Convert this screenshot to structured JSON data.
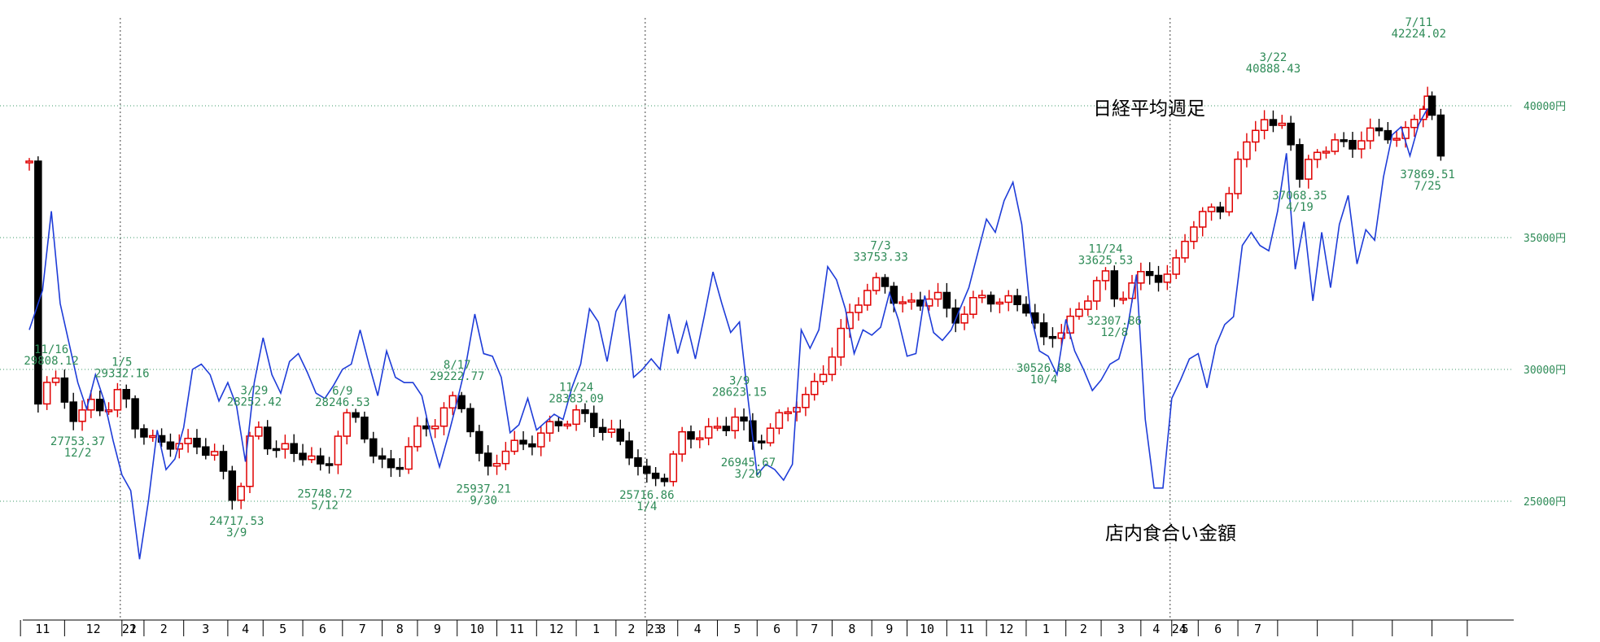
{
  "chart_data": {
    "type": "candlestick",
    "series_labels": {
      "candles": "日経平均週足",
      "line": "店内食合い金額"
    },
    "ylim": [
      20500,
      43400
    ],
    "y_ticks": [
      {
        "value": 25000,
        "label": "25000円"
      },
      {
        "value": 30000,
        "label": "30000円"
      },
      {
        "value": 35000,
        "label": "35000円"
      },
      {
        "value": 40000,
        "label": "40000円"
      }
    ],
    "year_markers": [
      {
        "week": 21,
        "label": "22"
      },
      {
        "week": 140,
        "label": "23"
      },
      {
        "week": 259,
        "label": "24"
      }
    ],
    "month_ticks": [
      "11",
      "12",
      "1",
      "2",
      "3",
      "4",
      "5",
      "6",
      "7",
      "8",
      "9",
      "10",
      "11",
      "12",
      "1",
      "2",
      "3",
      "4",
      "5",
      "6",
      "7",
      "8",
      "9",
      "10",
      "11",
      "12",
      "1",
      "2",
      "3",
      "4",
      "5",
      "6",
      "7"
    ],
    "annotations": [
      {
        "week": 5,
        "value": 29808.12,
        "date": "11/16",
        "pos": "above"
      },
      {
        "week": 11,
        "value": 27753.37,
        "date": "12/2",
        "pos": "below"
      },
      {
        "week": 21,
        "value": 29332.16,
        "date": "1/5",
        "pos": "above"
      },
      {
        "week": 47,
        "value": 24717.53,
        "date": "3/9",
        "pos": "below"
      },
      {
        "week": 51,
        "value": 28252.42,
        "date": "3/29",
        "pos": "above"
      },
      {
        "week": 67,
        "value": 25748.72,
        "date": "5/12",
        "pos": "below"
      },
      {
        "week": 71,
        "value": 28246.53,
        "date": "6/9",
        "pos": "above"
      },
      {
        "week": 97,
        "value": 29222.77,
        "date": "8/17",
        "pos": "above"
      },
      {
        "week": 103,
        "value": 25937.21,
        "date": "9/30",
        "pos": "below"
      },
      {
        "week": 124,
        "value": 28383.09,
        "date": "11/24",
        "pos": "above"
      },
      {
        "week": 140,
        "value": 25716.86,
        "date": "1/4",
        "pos": "below"
      },
      {
        "week": 161,
        "value": 28623.15,
        "date": "3/9",
        "pos": "above"
      },
      {
        "week": 163,
        "value": 26945.67,
        "date": "3/20",
        "pos": "below"
      },
      {
        "week": 193,
        "value": 33753.33,
        "date": "7/3",
        "pos": "above"
      },
      {
        "week": 230,
        "value": 30526.88,
        "date": "10/4",
        "pos": "below"
      },
      {
        "week": 244,
        "value": 33625.53,
        "date": "11/24",
        "pos": "above"
      },
      {
        "week": 246,
        "value": 32307.86,
        "date": "12/8",
        "pos": "below"
      },
      {
        "week": 282,
        "value": 40888.43,
        "date": "3/22",
        "pos": "above"
      },
      {
        "week": 288,
        "value": 37068.35,
        "date": "4/19",
        "pos": "below"
      },
      {
        "week": 315,
        "value": 42224.02,
        "date": "7/11",
        "pos": "above"
      },
      {
        "week": 317,
        "value": 37869.51,
        "date": "7/25",
        "pos": "below"
      }
    ],
    "candle_anchors": [
      [
        1,
        28700
      ],
      [
        5,
        29700
      ],
      [
        9,
        28600
      ],
      [
        11,
        27900
      ],
      [
        13,
        28700
      ],
      [
        18,
        28600
      ],
      [
        21,
        29200
      ],
      [
        24,
        28000
      ],
      [
        27,
        27200
      ],
      [
        31,
        27300
      ],
      [
        34,
        27100
      ],
      [
        38,
        27200
      ],
      [
        42,
        26700
      ],
      [
        47,
        24900
      ],
      [
        51,
        28000
      ],
      [
        55,
        27000
      ],
      [
        59,
        26900
      ],
      [
        63,
        26800
      ],
      [
        67,
        26000
      ],
      [
        71,
        28200
      ],
      [
        75,
        28000
      ],
      [
        79,
        26400
      ],
      [
        83,
        26200
      ],
      [
        88,
        27600
      ],
      [
        93,
        28200
      ],
      [
        97,
        29000
      ],
      [
        99,
        28400
      ],
      [
        103,
        26000
      ],
      [
        107,
        26900
      ],
      [
        111,
        27100
      ],
      [
        115,
        27400
      ],
      [
        119,
        27900
      ],
      [
        124,
        28300
      ],
      [
        128,
        28000
      ],
      [
        132,
        27500
      ],
      [
        136,
        26900
      ],
      [
        140,
        25800
      ],
      [
        144,
        26000
      ],
      [
        148,
        27400
      ],
      [
        152,
        27600
      ],
      [
        157,
        27700
      ],
      [
        161,
        28500
      ],
      [
        163,
        27100
      ],
      [
        167,
        27600
      ],
      [
        170,
        28100
      ],
      [
        174,
        28800
      ],
      [
        177,
        29000
      ],
      [
        181,
        30300
      ],
      [
        185,
        31700
      ],
      [
        189,
        33000
      ],
      [
        193,
        33300
      ],
      [
        197,
        32600
      ],
      [
        201,
        32300
      ],
      [
        205,
        33100
      ],
      [
        209,
        31800
      ],
      [
        213,
        32400
      ],
      [
        217,
        32800
      ],
      [
        220,
        32600
      ],
      [
        226,
        32400
      ],
      [
        230,
        31000
      ],
      [
        234,
        31600
      ],
      [
        238,
        32100
      ],
      [
        242,
        33500
      ],
      [
        244,
        33500
      ],
      [
        246,
        32600
      ],
      [
        250,
        33300
      ],
      [
        254,
        33600
      ],
      [
        259,
        33500
      ],
      [
        263,
        35500
      ],
      [
        267,
        35900
      ],
      [
        271,
        36300
      ],
      [
        275,
        38200
      ],
      [
        279,
        39700
      ],
      [
        282,
        39000
      ],
      [
        285,
        39600
      ],
      [
        288,
        37100
      ],
      [
        292,
        38400
      ],
      [
        296,
        38500
      ],
      [
        300,
        38600
      ],
      [
        304,
        38900
      ],
      [
        307,
        39100
      ],
      [
        311,
        38600
      ],
      [
        315,
        39900
      ],
      [
        317,
        40300
      ],
      [
        320,
        37900
      ]
    ],
    "line_points": [
      [
        0,
        31500
      ],
      [
        3,
        33000
      ],
      [
        5,
        36000
      ],
      [
        7,
        32500
      ],
      [
        9,
        31000
      ],
      [
        11,
        29500
      ],
      [
        13,
        28500
      ],
      [
        15,
        29800
      ],
      [
        17,
        28800
      ],
      [
        19,
        27300
      ],
      [
        21,
        26000
      ],
      [
        23,
        25400
      ],
      [
        25,
        22800
      ],
      [
        27,
        25000
      ],
      [
        29,
        27700
      ],
      [
        31,
        26200
      ],
      [
        33,
        26600
      ],
      [
        35,
        27800
      ],
      [
        37,
        30000
      ],
      [
        39,
        30200
      ],
      [
        41,
        29800
      ],
      [
        43,
        28800
      ],
      [
        45,
        29500
      ],
      [
        47,
        28600
      ],
      [
        49,
        26500
      ],
      [
        51,
        29500
      ],
      [
        53,
        31200
      ],
      [
        55,
        29800
      ],
      [
        57,
        29100
      ],
      [
        59,
        30300
      ],
      [
        61,
        30600
      ],
      [
        63,
        29900
      ],
      [
        65,
        29100
      ],
      [
        67,
        28900
      ],
      [
        69,
        29400
      ],
      [
        71,
        30000
      ],
      [
        73,
        30200
      ],
      [
        75,
        31500
      ],
      [
        77,
        30200
      ],
      [
        79,
        29000
      ],
      [
        81,
        30700
      ],
      [
        83,
        29700
      ],
      [
        85,
        29500
      ],
      [
        87,
        29500
      ],
      [
        89,
        29000
      ],
      [
        91,
        27500
      ],
      [
        93,
        26300
      ],
      [
        95,
        27500
      ],
      [
        97,
        28800
      ],
      [
        99,
        30200
      ],
      [
        101,
        32100
      ],
      [
        103,
        30600
      ],
      [
        105,
        30500
      ],
      [
        107,
        29700
      ],
      [
        109,
        27600
      ],
      [
        111,
        27900
      ],
      [
        113,
        28900
      ],
      [
        115,
        27700
      ],
      [
        117,
        28000
      ],
      [
        119,
        28300
      ],
      [
        121,
        28100
      ],
      [
        123,
        29300
      ],
      [
        125,
        30200
      ],
      [
        127,
        32300
      ],
      [
        129,
        31800
      ],
      [
        131,
        30300
      ],
      [
        133,
        32200
      ],
      [
        135,
        32800
      ],
      [
        137,
        29700
      ],
      [
        139,
        30000
      ],
      [
        141,
        30400
      ],
      [
        143,
        30000
      ],
      [
        145,
        32100
      ],
      [
        147,
        30600
      ],
      [
        149,
        31800
      ],
      [
        151,
        30400
      ],
      [
        153,
        32000
      ],
      [
        155,
        33700
      ],
      [
        157,
        32500
      ],
      [
        159,
        31400
      ],
      [
        161,
        31800
      ],
      [
        163,
        28800
      ],
      [
        165,
        26000
      ],
      [
        167,
        26400
      ],
      [
        169,
        26200
      ],
      [
        171,
        25800
      ],
      [
        173,
        26400
      ],
      [
        175,
        31500
      ],
      [
        177,
        30800
      ],
      [
        179,
        31500
      ],
      [
        181,
        33900
      ],
      [
        183,
        33400
      ],
      [
        185,
        32300
      ],
      [
        187,
        30600
      ],
      [
        189,
        31500
      ],
      [
        191,
        31300
      ],
      [
        193,
        31600
      ],
      [
        195,
        32900
      ],
      [
        197,
        31900
      ],
      [
        199,
        30500
      ],
      [
        201,
        30600
      ],
      [
        203,
        32800
      ],
      [
        205,
        31400
      ],
      [
        207,
        31100
      ],
      [
        209,
        31500
      ],
      [
        211,
        32300
      ],
      [
        213,
        33100
      ],
      [
        215,
        34400
      ],
      [
        217,
        35700
      ],
      [
        219,
        35200
      ],
      [
        221,
        36400
      ],
      [
        223,
        37100
      ],
      [
        225,
        35500
      ],
      [
        227,
        32100
      ],
      [
        229,
        30700
      ],
      [
        231,
        30500
      ],
      [
        233,
        29800
      ],
      [
        235,
        31900
      ],
      [
        237,
        30700
      ],
      [
        239,
        30000
      ],
      [
        241,
        29200
      ],
      [
        243,
        29600
      ],
      [
        245,
        30200
      ],
      [
        247,
        30400
      ],
      [
        249,
        31600
      ],
      [
        251,
        33600
      ],
      [
        253,
        28100
      ],
      [
        255,
        25500
      ],
      [
        257,
        25500
      ],
      [
        259,
        28900
      ],
      [
        261,
        29600
      ],
      [
        263,
        30400
      ],
      [
        265,
        30600
      ],
      [
        267,
        29300
      ],
      [
        269,
        30900
      ],
      [
        271,
        31700
      ],
      [
        273,
        32000
      ],
      [
        275,
        34700
      ],
      [
        277,
        35200
      ],
      [
        279,
        34700
      ],
      [
        281,
        34500
      ],
      [
        283,
        36000
      ],
      [
        285,
        38200
      ],
      [
        287,
        33800
      ],
      [
        289,
        35600
      ],
      [
        291,
        32600
      ],
      [
        293,
        35200
      ],
      [
        295,
        33100
      ],
      [
        297,
        35500
      ],
      [
        299,
        36600
      ],
      [
        301,
        34000
      ],
      [
        303,
        35300
      ],
      [
        305,
        34900
      ],
      [
        307,
        37300
      ],
      [
        309,
        38900
      ],
      [
        311,
        39200
      ],
      [
        313,
        38100
      ],
      [
        315,
        39300
      ],
      [
        317,
        39900
      ]
    ]
  }
}
